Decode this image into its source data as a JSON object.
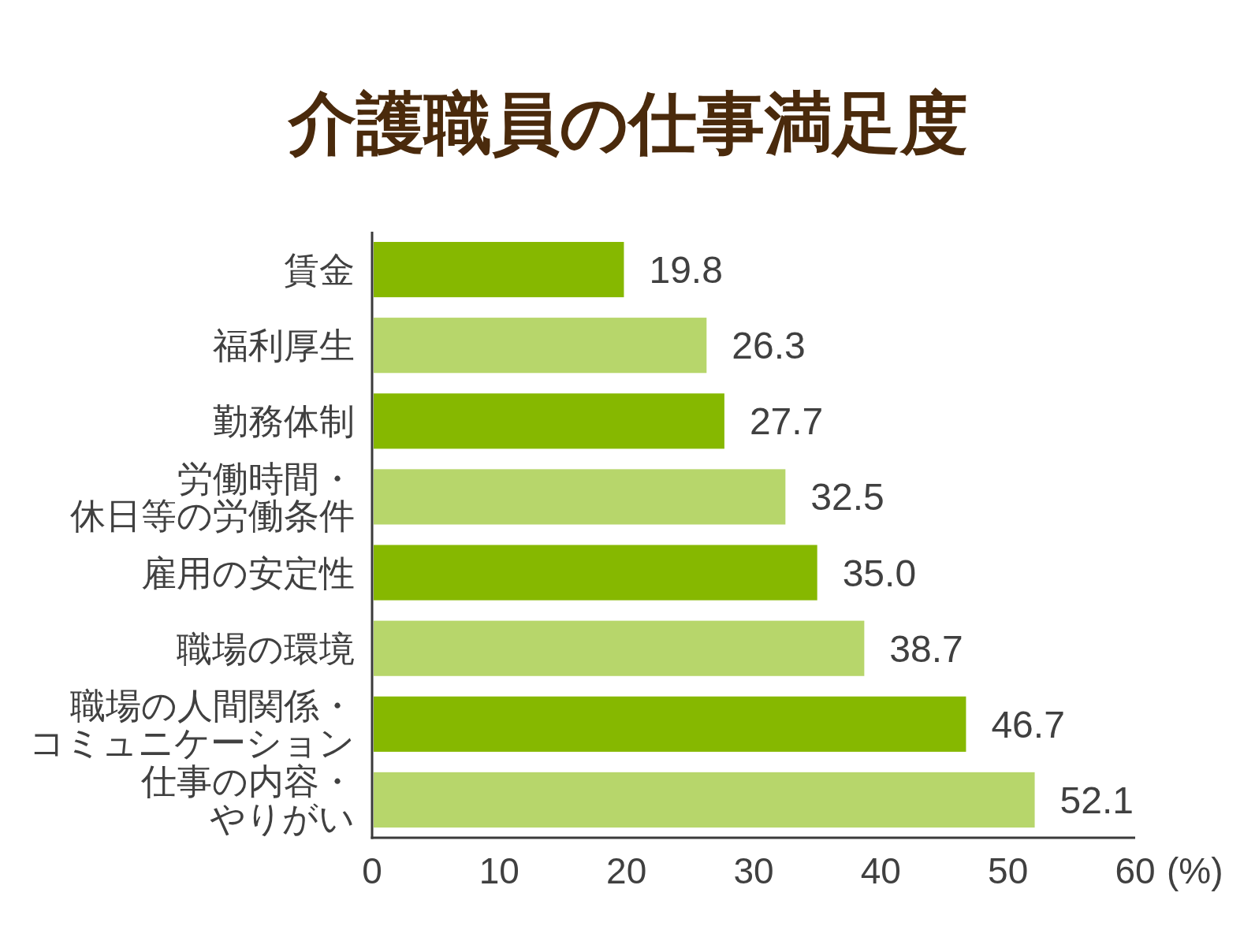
{
  "chart_data": {
    "type": "bar",
    "orientation": "horizontal",
    "title": "介護職員の仕事満足度",
    "xlabel": "(%)",
    "categories": [
      "賃金",
      "福利厚生",
      "勤務体制",
      "労働時間・休日等の労働条件",
      "雇用の安定性",
      "職場の環境",
      "職場の人間関係・コミュニケーション",
      "仕事の内容・やりがい"
    ],
    "values": [
      19.8,
      26.3,
      27.7,
      32.5,
      35.0,
      38.7,
      46.7,
      52.1
    ],
    "value_labels": [
      "19.8",
      "26.3",
      "27.7",
      "32.5",
      "35.0",
      "38.7",
      "46.7",
      "52.1"
    ],
    "colors": [
      "#86b800",
      "#b7d66b",
      "#86b800",
      "#b7d66b",
      "#86b800",
      "#b7d66b",
      "#86b800",
      "#b7d66b"
    ],
    "xlim": [
      0,
      60
    ],
    "xticks": [
      0,
      10,
      20,
      30,
      40,
      50,
      60
    ]
  }
}
